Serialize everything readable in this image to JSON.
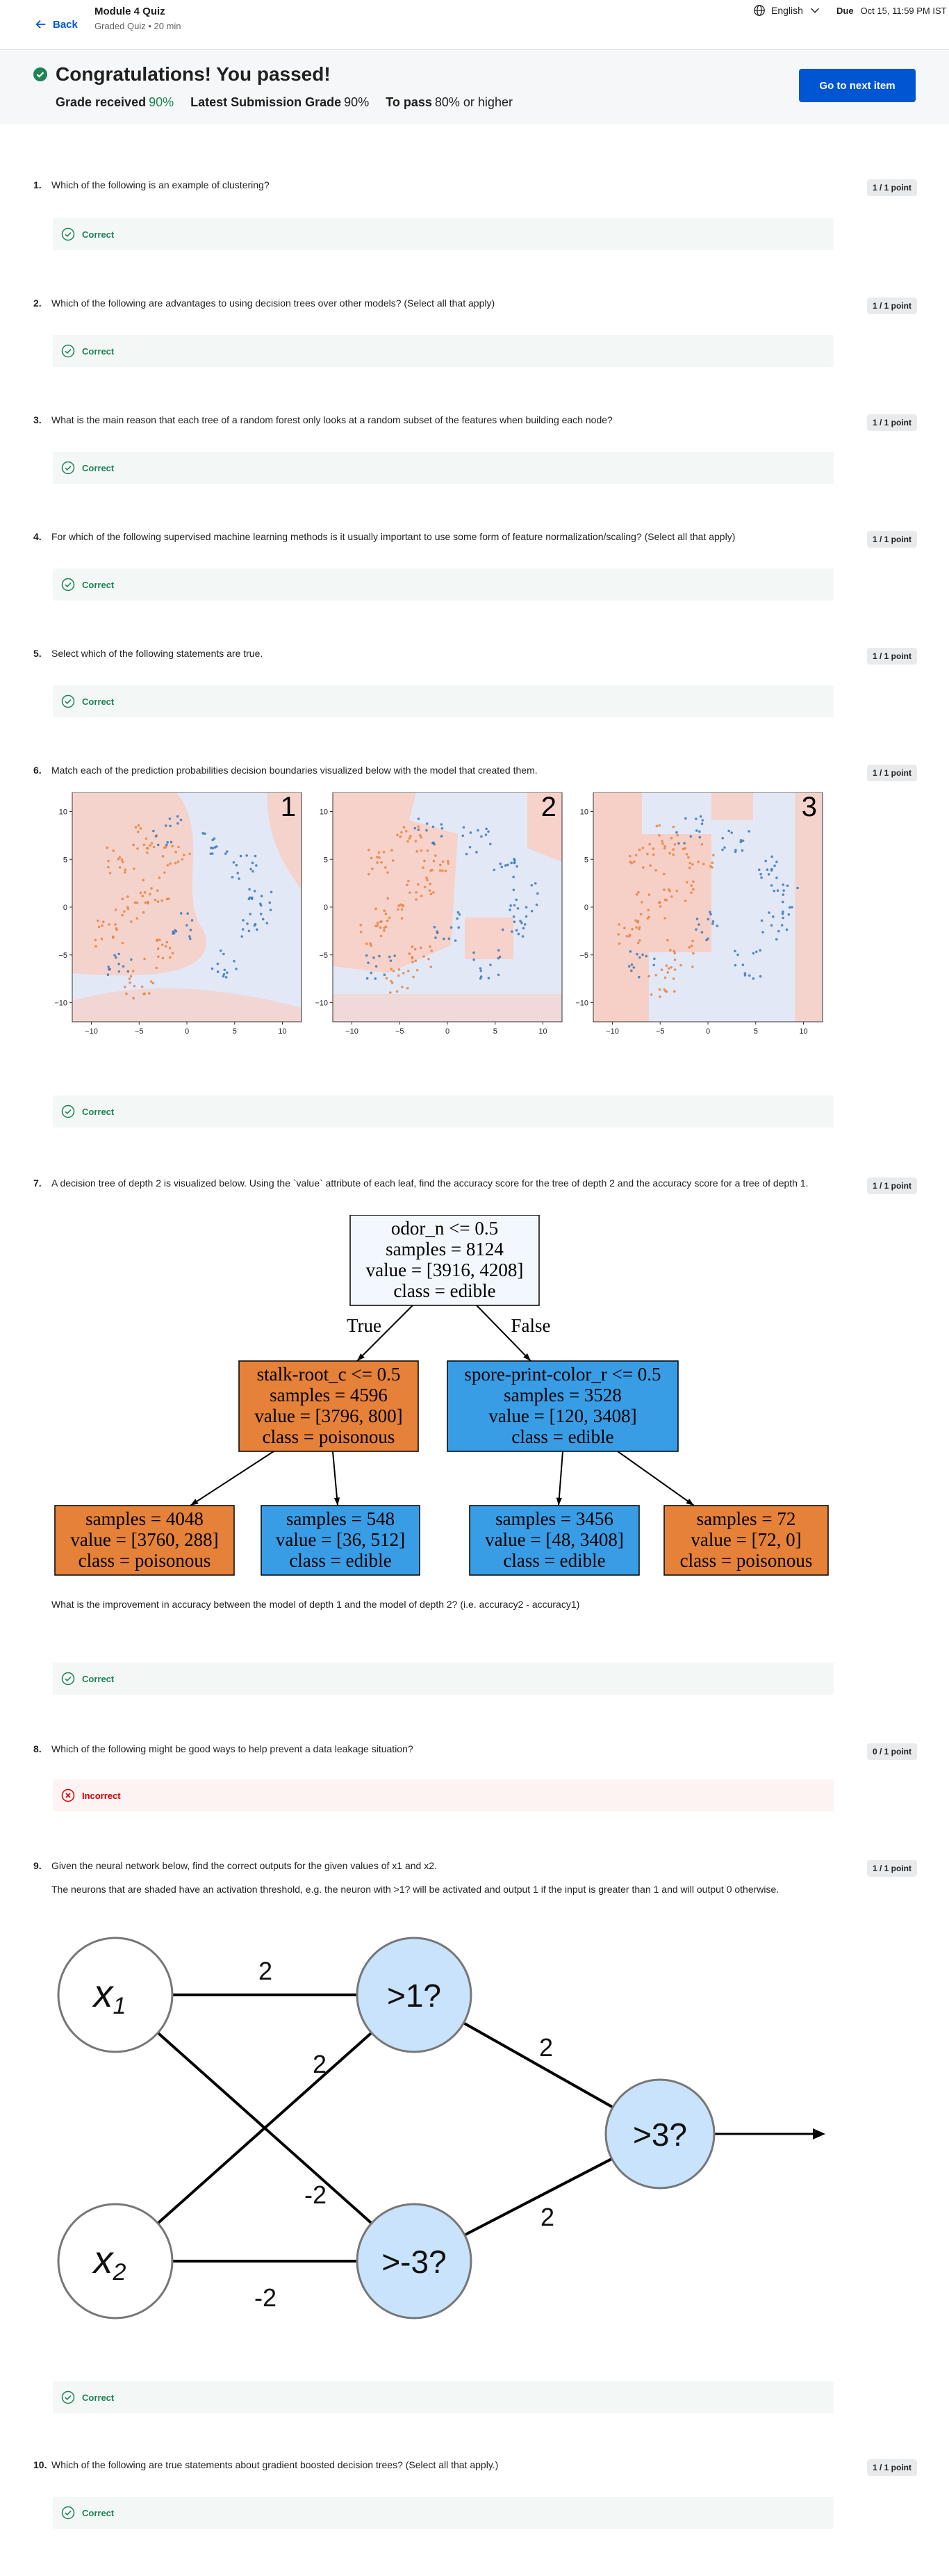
{
  "header": {
    "back_label": "Back",
    "title": "Module 4 Quiz",
    "subtitle": "Graded Quiz • 20 min",
    "language": "English",
    "due_label": "Due",
    "due_value": "Oct 15, 11:59 PM IST"
  },
  "banner": {
    "heading": "Congratulations! You passed!",
    "grade_received_label": "Grade received",
    "grade_received_value": "90%",
    "latest_label": "Latest Submission Grade",
    "latest_value": "90%",
    "to_pass_label": "To pass",
    "to_pass_value": "80% or higher",
    "next_button": "Go to next item"
  },
  "questions": [
    {
      "num": "1.",
      "text": "Which of the following is an example of clustering?",
      "score": "1 / 1 point",
      "feedback": "Correct",
      "status": "correct"
    },
    {
      "num": "2.",
      "text": "Which of the following are advantages to using decision trees over other models? (Select all that apply)",
      "score": "1 / 1 point",
      "feedback": "Correct",
      "status": "correct"
    },
    {
      "num": "3.",
      "text": "What is the main reason that each tree of a random forest only looks at a random subset of the features when building each node?",
      "score": "1 / 1 point",
      "feedback": "Correct",
      "status": "correct"
    },
    {
      "num": "4.",
      "text": "For which of the following supervised machine learning methods is it usually important to use some form of feature normalization/scaling? (Select all that apply)",
      "score": "1 / 1 point",
      "feedback": "Correct",
      "status": "correct"
    },
    {
      "num": "5.",
      "text": "Select which of the following statements are true.",
      "score": "1 / 1 point",
      "feedback": "Correct",
      "status": "correct"
    },
    {
      "num": "6.",
      "text": "Match each of the prediction probabilities decision boundaries visualized below with the model that created them.",
      "score": "1 / 1 point",
      "feedback": "Correct",
      "status": "correct"
    },
    {
      "num": "7.",
      "text": "A decision tree of depth 2 is visualized below. Using the `value` attribute of each leaf, find the accuracy score for the tree of depth 2 and the accuracy score for a tree of depth 1.",
      "text2": "What is the improvement in accuracy between the model of depth 1 and the model of depth 2? (i.e. accuracy2 - accuracy1)",
      "score": "1 / 1 point",
      "feedback": "Correct",
      "status": "correct"
    },
    {
      "num": "8.",
      "text": "Which of the following might be good ways to help prevent a data leakage situation?",
      "score": "0 / 1 point",
      "feedback": "Incorrect",
      "status": "incorrect"
    },
    {
      "num": "9.",
      "text": "Given the neural network below, find the correct outputs for the given values of x1 and x2.",
      "text2": "The neurons that are shaded have an activation threshold, e.g. the neuron with >1? will be activated and output 1 if the input is greater than 1 and will output 0 otherwise.",
      "score": "1 / 1 point",
      "feedback": "Correct",
      "status": "correct"
    },
    {
      "num": "10.",
      "text": "Which of the following are true statements about gradient boosted decision trees? (Select all that apply.)",
      "score": "1 / 1 point",
      "feedback": "Correct",
      "status": "correct"
    }
  ],
  "q6_plots": {
    "panels": [
      "1",
      "2",
      "3"
    ],
    "ticks": [
      "10",
      "5",
      "0",
      "−5",
      "−10"
    ],
    "xticks": [
      "−10",
      "−5",
      "0",
      "5",
      "10"
    ]
  },
  "q7_tree": {
    "root": [
      "odor_n <= 0.5",
      "samples = 8124",
      "value = [3916, 4208]",
      "class = edible"
    ],
    "true_label": "True",
    "false_label": "False",
    "left": [
      "stalk-root_c <= 0.5",
      "samples = 4596",
      "value = [3796, 800]",
      "class = poisonous"
    ],
    "right": [
      "spore-print-color_r <= 0.5",
      "samples = 3528",
      "value = [120, 3408]",
      "class = edible"
    ],
    "ll": [
      "samples = 4048",
      "value = [3760, 288]",
      "class = poisonous"
    ],
    "lr": [
      "samples = 548",
      "value = [36, 512]",
      "class = edible"
    ],
    "rl": [
      "samples = 3456",
      "value = [48, 3408]",
      "class = edible"
    ],
    "rr": [
      "samples = 72",
      "value = [72, 0]",
      "class = poisonous"
    ],
    "colors": {
      "poisonous": "#e58139",
      "edible": "#399de5",
      "root": "#f2f8fd"
    }
  },
  "q9_network": {
    "x1": "x",
    "x1_sub": "1",
    "x2": "x",
    "x2_sub": "2",
    "h1": ">1?",
    "h2": ">-3?",
    "out": ">3?",
    "w_x1_h1": "2",
    "w_x2_h1": "2",
    "w_x1_h2": "-2",
    "w_x2_h2": "-2",
    "w_h1_out": "2",
    "w_h2_out": "2",
    "neuron_color": "#c8e3fb"
  }
}
